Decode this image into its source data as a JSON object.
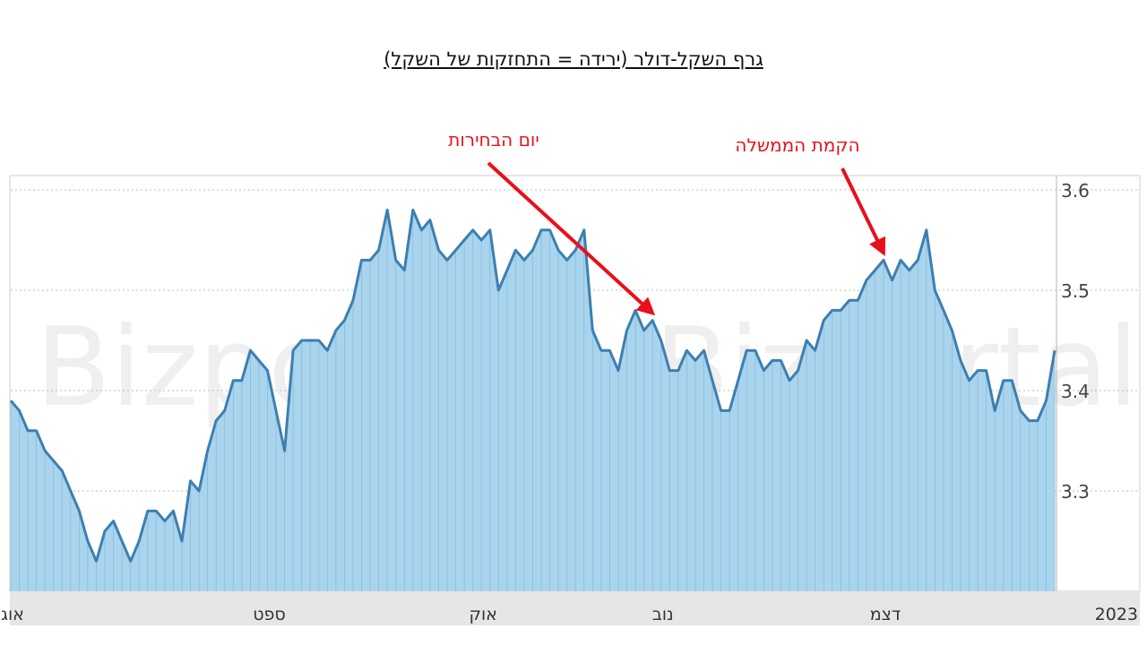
{
  "chart_data": {
    "type": "area",
    "title": "גרף השקל-דולר (ירידה = התחזקות של השקל)",
    "yticks": [
      "3.6",
      "3.5",
      "3.4",
      "3.3"
    ],
    "ylim": [
      3.2,
      3.6
    ],
    "grid": "horizontal dotted",
    "xticks": [
      {
        "label": "אוג",
        "index": 0
      },
      {
        "label": "ספט",
        "index": 30
      },
      {
        "label": "אוק",
        "index": 55
      },
      {
        "label": "נוב",
        "index": 76
      },
      {
        "label": "דצמ",
        "index": 102
      },
      {
        "label": "2023",
        "index": 129
      }
    ],
    "values": [
      3.39,
      3.38,
      3.36,
      3.36,
      3.34,
      3.33,
      3.32,
      3.3,
      3.28,
      3.25,
      3.23,
      3.26,
      3.27,
      3.25,
      3.23,
      3.25,
      3.28,
      3.28,
      3.27,
      3.28,
      3.25,
      3.31,
      3.3,
      3.34,
      3.37,
      3.38,
      3.41,
      3.41,
      3.44,
      3.43,
      3.42,
      3.38,
      3.34,
      3.44,
      3.45,
      3.45,
      3.45,
      3.44,
      3.46,
      3.47,
      3.49,
      3.53,
      3.53,
      3.54,
      3.58,
      3.53,
      3.52,
      3.58,
      3.56,
      3.57,
      3.54,
      3.53,
      3.54,
      3.55,
      3.56,
      3.55,
      3.56,
      3.5,
      3.52,
      3.54,
      3.53,
      3.54,
      3.56,
      3.56,
      3.54,
      3.53,
      3.54,
      3.56,
      3.46,
      3.44,
      3.44,
      3.42,
      3.46,
      3.48,
      3.46,
      3.47,
      3.45,
      3.42,
      3.42,
      3.44,
      3.43,
      3.44,
      3.41,
      3.38,
      3.38,
      3.41,
      3.44,
      3.44,
      3.42,
      3.43,
      3.43,
      3.41,
      3.42,
      3.45,
      3.44,
      3.47,
      3.48,
      3.48,
      3.49,
      3.49,
      3.51,
      3.52,
      3.53,
      3.51,
      3.53,
      3.52,
      3.53,
      3.56,
      3.5,
      3.48,
      3.46,
      3.43,
      3.41,
      3.42,
      3.42,
      3.38,
      3.41,
      3.41,
      3.38,
      3.37,
      3.37,
      3.39,
      3.44
    ],
    "color": "#3d7fb0",
    "fill_color": "#a9d4ee",
    "annotations": [
      {
        "text": "יום הבחירות",
        "index": 75
      },
      {
        "text": "הקמת הממשלה",
        "index": 102
      }
    ],
    "annotation_color": "#e8101a"
  },
  "watermark": [
    "Bizportal",
    "Bizportal"
  ]
}
